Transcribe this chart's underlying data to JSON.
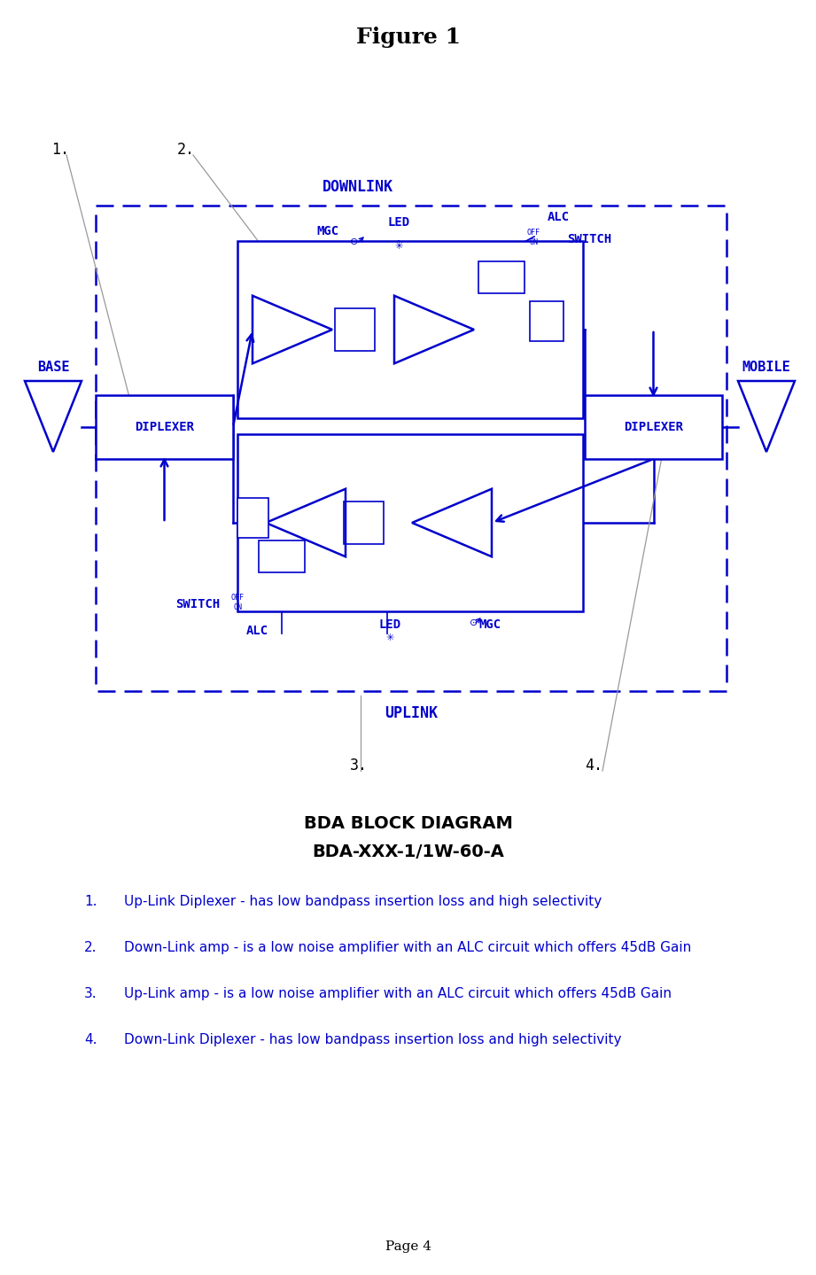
{
  "title": "Figure 1",
  "subtitle1": "BDA BLOCK DIAGRAM",
  "subtitle2": "BDA-XXX-1/1W-60-A",
  "blue": "#0000CC",
  "black": "#000000",
  "gray": "#999999",
  "bg": "#FFFFFF",
  "items": [
    "Up-Link Diplexer - has low bandpass insertion loss and high selectivity",
    "Down-Link amp - is a low noise amplifier with an ALC circuit which offers 45dB Gain",
    "Up-Link amp - is a low noise amplifier with an ALC circuit which offers 45dB Gain",
    "Down-Link Diplexer - has low bandpass insertion loss and high selectivity"
  ],
  "page": "Page 4",
  "fig_width": 9.21,
  "fig_height": 14.39,
  "dpi": 100
}
